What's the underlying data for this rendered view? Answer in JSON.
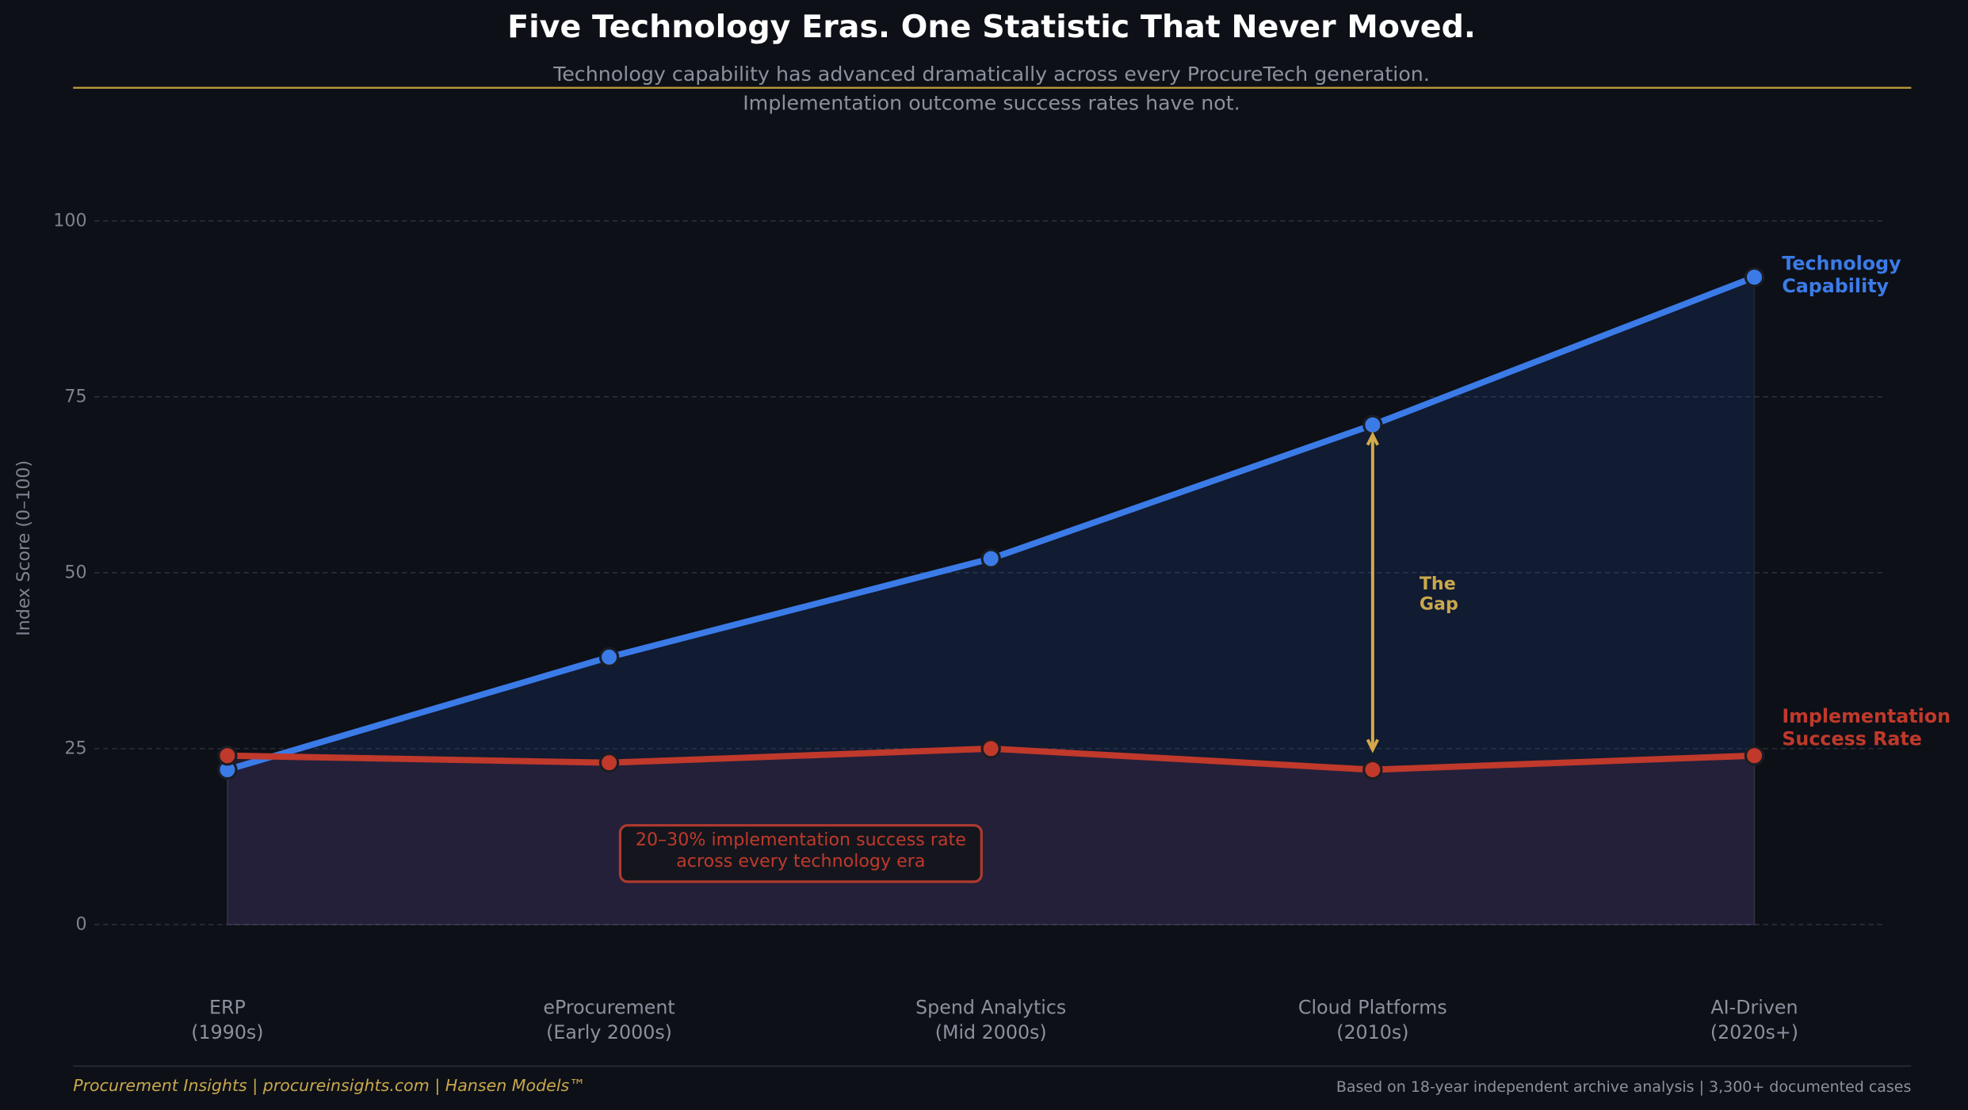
{
  "chart_data": {
    "type": "line",
    "title": "Five Technology Eras. One Statistic That Never Moved.",
    "subtitle": [
      "Technology capability has advanced dramatically across every ProcureTech generation.",
      "Implementation outcome success rates have not."
    ],
    "y_label": "Index Score (0–100)",
    "categories": [
      [
        "ERP",
        "(1990s)"
      ],
      [
        "eProcurement",
        "(Early 2000s)"
      ],
      [
        "Spend Analytics",
        "(Mid 2000s)"
      ],
      [
        "Cloud Platforms",
        "(2010s)"
      ],
      [
        "AI-Driven",
        "(2020s+)"
      ]
    ],
    "series": [
      {
        "name": "Technology Capability",
        "color": "#3b7be8",
        "values": [
          22,
          38,
          52,
          71,
          92
        ]
      },
      {
        "name": "Implementation Success Rate",
        "color": "#c0392b",
        "values": [
          24,
          23,
          25,
          22,
          24
        ]
      }
    ],
    "ylim": [
      -8,
      110
    ],
    "yticks": [
      0,
      25,
      50,
      75,
      100
    ],
    "grid": true,
    "annotations": {
      "gap": "The Gap",
      "box": "20–30% implementation success rate across every technology era"
    },
    "footer": {
      "left": "Procurement Insights | procureinsights.com | Hansen Models™",
      "right": "Based on 18-year independent archive analysis | 3,300+ documented cases"
    }
  }
}
